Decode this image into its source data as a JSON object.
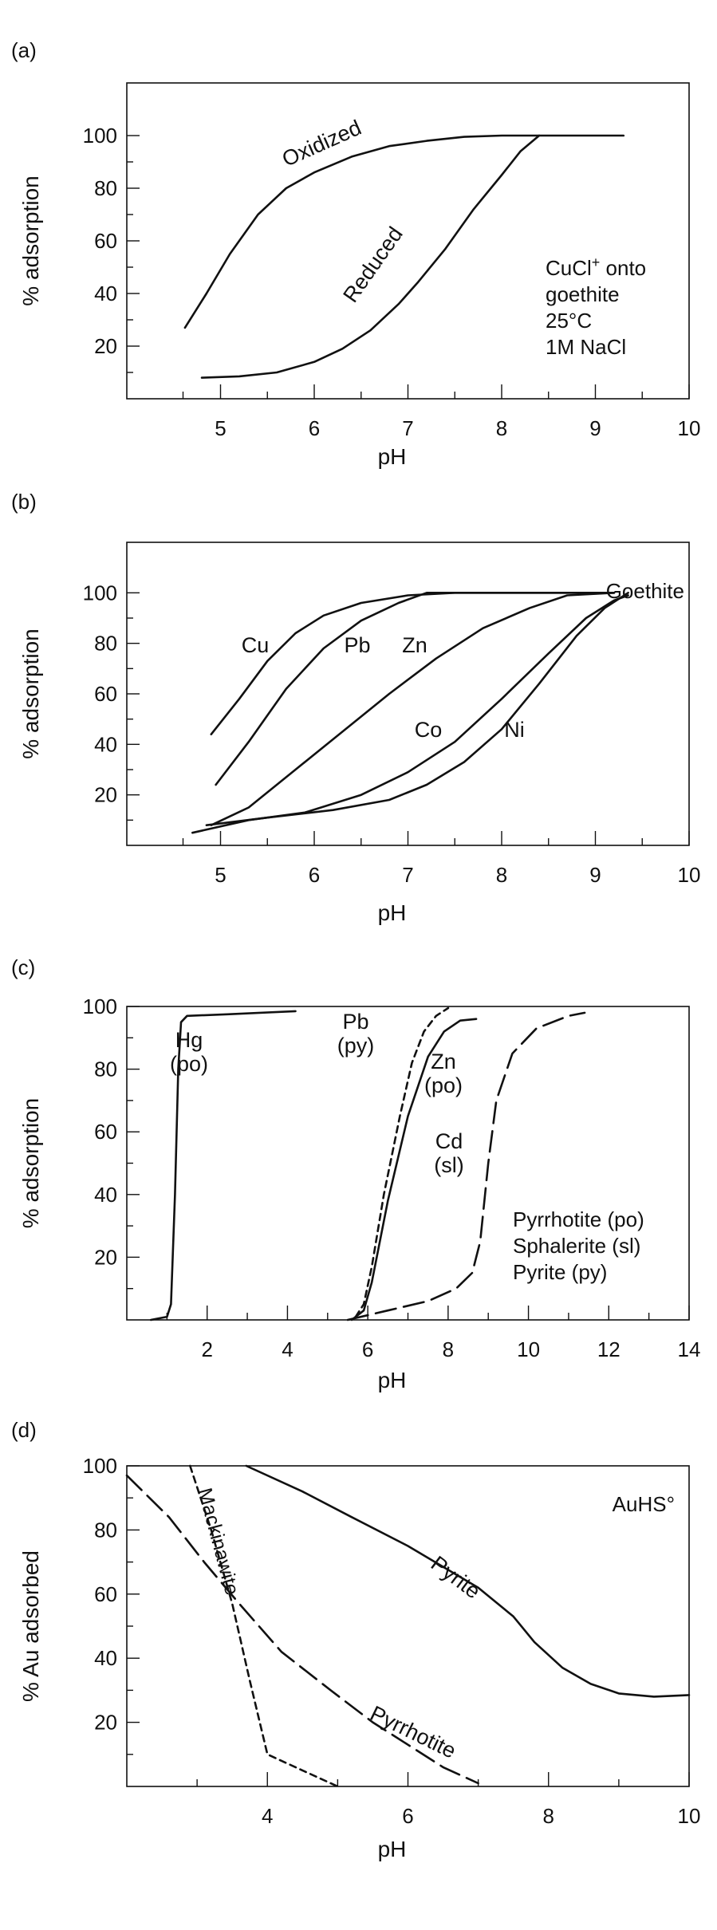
{
  "chart_data": [
    {
      "type": "line",
      "panel_label": "(a)",
      "xlabel": "pH",
      "ylabel": "% adsorption",
      "xlim": [
        4,
        10
      ],
      "ylim": [
        0,
        120
      ],
      "xticks": [
        5,
        6,
        7,
        8,
        9,
        10
      ],
      "yticks": [
        20,
        40,
        60,
        80,
        100
      ],
      "annotation_lines": [
        "CuCl+ onto",
        "goethite",
        "25°C",
        "1M NaCl"
      ],
      "series": [
        {
          "name": "Oxidized",
          "style": "solid",
          "points": [
            [
              4.62,
              27
            ],
            [
              4.85,
              40
            ],
            [
              5.1,
              55
            ],
            [
              5.4,
              70
            ],
            [
              5.7,
              80
            ],
            [
              6.0,
              86
            ],
            [
              6.4,
              92
            ],
            [
              6.8,
              96
            ],
            [
              7.2,
              98
            ],
            [
              7.6,
              99.5
            ],
            [
              8.0,
              100
            ],
            [
              8.4,
              100
            ],
            [
              8.9,
              100
            ],
            [
              9.3,
              100
            ]
          ]
        },
        {
          "name": "Reduced",
          "style": "solid",
          "points": [
            [
              4.8,
              8
            ],
            [
              5.2,
              8.5
            ],
            [
              5.6,
              10
            ],
            [
              6.0,
              14
            ],
            [
              6.3,
              19
            ],
            [
              6.6,
              26
            ],
            [
              6.9,
              36
            ],
            [
              7.1,
              44
            ],
            [
              7.4,
              57
            ],
            [
              7.7,
              72
            ],
            [
              8.0,
              85
            ],
            [
              8.2,
              94
            ],
            [
              8.4,
              100
            ]
          ]
        }
      ]
    },
    {
      "type": "line",
      "panel_label": "(b)",
      "xlabel": "pH",
      "ylabel": "% adsorption",
      "xlim": [
        4,
        10
      ],
      "ylim": [
        0,
        120
      ],
      "xticks": [
        5,
        6,
        7,
        8,
        9,
        10
      ],
      "yticks": [
        20,
        40,
        60,
        80,
        100
      ],
      "annotation_lines": [
        "Goethite"
      ],
      "series": [
        {
          "name": "Cu",
          "style": "solid",
          "points": [
            [
              4.9,
              44
            ],
            [
              5.2,
              58
            ],
            [
              5.5,
              73
            ],
            [
              5.8,
              84
            ],
            [
              6.1,
              91
            ],
            [
              6.5,
              96
            ],
            [
              7.0,
              99
            ],
            [
              7.5,
              100
            ],
            [
              8.0,
              100
            ],
            [
              8.5,
              100
            ],
            [
              9.2,
              100
            ]
          ]
        },
        {
          "name": "Pb",
          "style": "solid",
          "points": [
            [
              4.95,
              24
            ],
            [
              5.3,
              41
            ],
            [
              5.7,
              62
            ],
            [
              6.1,
              78
            ],
            [
              6.5,
              89
            ],
            [
              6.9,
              96
            ],
            [
              7.2,
              100
            ],
            [
              8.0,
              100
            ],
            [
              9.2,
              100
            ]
          ]
        },
        {
          "name": "Zn",
          "style": "solid",
          "points": [
            [
              4.9,
              8
            ],
            [
              5.3,
              15
            ],
            [
              5.8,
              30
            ],
            [
              6.3,
              45
            ],
            [
              6.8,
              60
            ],
            [
              7.3,
              74
            ],
            [
              7.8,
              86
            ],
            [
              8.3,
              94
            ],
            [
              8.7,
              99
            ],
            [
              9.2,
              100
            ]
          ]
        },
        {
          "name": "Co",
          "style": "solid",
          "points": [
            [
              4.7,
              5
            ],
            [
              5.3,
              10
            ],
            [
              5.9,
              13
            ],
            [
              6.5,
              20
            ],
            [
              7.0,
              29
            ],
            [
              7.5,
              41
            ],
            [
              8.0,
              58
            ],
            [
              8.5,
              76
            ],
            [
              8.9,
              90
            ],
            [
              9.2,
              97
            ],
            [
              9.35,
              99
            ]
          ]
        },
        {
          "name": "Ni",
          "style": "solid",
          "points": [
            [
              4.85,
              8
            ],
            [
              5.5,
              11
            ],
            [
              6.2,
              14
            ],
            [
              6.8,
              18
            ],
            [
              7.2,
              24
            ],
            [
              7.6,
              33
            ],
            [
              8.0,
              46
            ],
            [
              8.4,
              64
            ],
            [
              8.8,
              83
            ],
            [
              9.1,
              94
            ],
            [
              9.35,
              100
            ]
          ]
        }
      ]
    },
    {
      "type": "line",
      "panel_label": "(c)",
      "xlabel": "pH",
      "ylabel": "% adsorption",
      "xlim": [
        0,
        14
      ],
      "ylim": [
        0,
        100
      ],
      "xticks": [
        2,
        4,
        6,
        8,
        10,
        12,
        14
      ],
      "yticks": [
        20,
        40,
        60,
        80,
        100
      ],
      "annotation_lines": [
        "Pyrrhotite (po)",
        "Sphalerite (sl)",
        "Pyrite (py)"
      ],
      "series": [
        {
          "name": "Hg (po)",
          "style": "solid",
          "points": [
            [
              0.6,
              0
            ],
            [
              1.0,
              1
            ],
            [
              1.1,
              5
            ],
            [
              1.2,
              40
            ],
            [
              1.28,
              80
            ],
            [
              1.35,
              95
            ],
            [
              1.5,
              97
            ],
            [
              2.5,
              97.5
            ],
            [
              4.2,
              98.5
            ]
          ]
        },
        {
          "name": "Pb (py)",
          "style": "dashed",
          "points": [
            [
              5.7,
              1
            ],
            [
              5.9,
              5
            ],
            [
              6.1,
              17
            ],
            [
              6.4,
              40
            ],
            [
              6.8,
              65
            ],
            [
              7.1,
              82
            ],
            [
              7.4,
              92
            ],
            [
              7.7,
              97
            ],
            [
              8.0,
              99.5
            ]
          ]
        },
        {
          "name": "Zn (po)",
          "style": "solid",
          "points": [
            [
              5.6,
              0
            ],
            [
              5.9,
              3
            ],
            [
              6.1,
              12
            ],
            [
              6.5,
              38
            ],
            [
              7.0,
              65
            ],
            [
              7.5,
              84
            ],
            [
              7.9,
              92
            ],
            [
              8.3,
              95.5
            ],
            [
              8.7,
              96
            ]
          ]
        },
        {
          "name": "Cd (sl)",
          "style": "long-dash",
          "points": [
            [
              5.5,
              0
            ],
            [
              6.5,
              3
            ],
            [
              7.5,
              6
            ],
            [
              8.2,
              10
            ],
            [
              8.6,
              15
            ],
            [
              8.8,
              25
            ],
            [
              9.0,
              50
            ],
            [
              9.2,
              70
            ],
            [
              9.6,
              85
            ],
            [
              10.2,
              93
            ],
            [
              11.0,
              97
            ],
            [
              11.4,
              98
            ]
          ]
        }
      ]
    },
    {
      "type": "line",
      "panel_label": "(d)",
      "xlabel": "pH",
      "ylabel": "% Au adsorbed",
      "xlim": [
        2,
        10
      ],
      "ylim": [
        0,
        100
      ],
      "xticks": [
        4,
        6,
        8,
        10
      ],
      "yticks": [
        20,
        40,
        60,
        80,
        100
      ],
      "annotation_lines": [
        "AuHS°"
      ],
      "series": [
        {
          "name": "Pyrite",
          "style": "solid",
          "points": [
            [
              3.7,
              100
            ],
            [
              4.5,
              92
            ],
            [
              5.2,
              84
            ],
            [
              6.0,
              75
            ],
            [
              7.0,
              62
            ],
            [
              7.5,
              53
            ],
            [
              7.8,
              45
            ],
            [
              8.2,
              37
            ],
            [
              8.6,
              32
            ],
            [
              9.0,
              29
            ],
            [
              9.5,
              28
            ],
            [
              10.0,
              28.5
            ]
          ]
        },
        {
          "name": "Pyrrhotite",
          "style": "long-dash",
          "points": [
            [
              2.0,
              97
            ],
            [
              2.6,
              84
            ],
            [
              3.1,
              70
            ],
            [
              3.6,
              57
            ],
            [
              4.2,
              42
            ],
            [
              4.9,
              30
            ],
            [
              5.5,
              20
            ],
            [
              6.0,
              13
            ],
            [
              6.5,
              6
            ],
            [
              7.0,
              1
            ]
          ]
        },
        {
          "name": "Mackinawite",
          "style": "dashed",
          "points": [
            [
              2.9,
              100
            ],
            [
              3.2,
              80
            ],
            [
              3.5,
              57
            ],
            [
              3.75,
              33
            ],
            [
              4.0,
              10
            ],
            [
              4.5,
              5
            ],
            [
              5.0,
              0
            ]
          ]
        }
      ]
    }
  ]
}
